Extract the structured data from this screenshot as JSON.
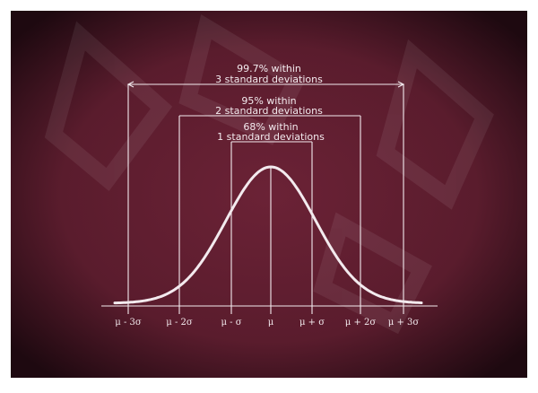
{
  "board": {
    "background_color": "#6b2236",
    "edge_color": "#1e0910",
    "chalk_color": "#f3eaee"
  },
  "ranges": [
    {
      "line1": "99.7% within",
      "line2": "3 standard deviations",
      "sigma": 3
    },
    {
      "line1": "95% within",
      "line2": "2 standard deviations",
      "sigma": 2
    },
    {
      "line1": "68% within",
      "line2": "1 standard deviations",
      "sigma": 1
    }
  ],
  "axis_labels": [
    "μ - 3σ",
    "μ - 2σ",
    "μ - σ",
    "μ",
    "μ + σ",
    "μ + 2σ",
    "μ + 3σ"
  ]
}
